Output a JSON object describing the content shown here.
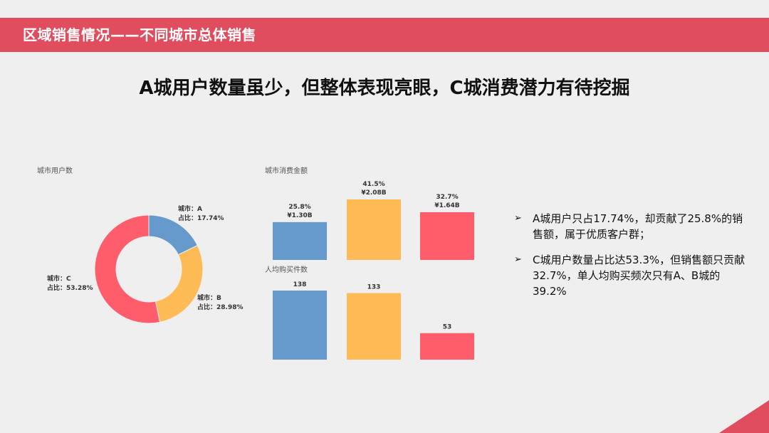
{
  "header": {
    "title": "区域销售情况——不同城市总体销售"
  },
  "headline": "A城用户数量虽少，但整体表现亮眼，C城消费潜力有待挖掘",
  "colors": {
    "A": "#6699cc",
    "B": "#ffbb55",
    "C": "#ff5c6c",
    "banner": "#e04d5e"
  },
  "chart_data": [
    {
      "type": "pie",
      "title": "城市用户数",
      "labels": [
        "A",
        "B",
        "C"
      ],
      "values": [
        17.74,
        28.98,
        53.28
      ],
      "slice_labels": [
        {
          "line1": "城市：A",
          "line2": "占比：17.74%"
        },
        {
          "line1": "城市：B",
          "line2": "占比：28.98%"
        },
        {
          "line1": "城市：C",
          "line2": "占比：53.28%"
        }
      ]
    },
    {
      "type": "bar",
      "title": "城市消费金额",
      "categories": [
        "A",
        "B",
        "C"
      ],
      "values": [
        1.3,
        2.08,
        1.64
      ],
      "data_labels": [
        {
          "line1": "25.8%",
          "line2": "¥1.30B"
        },
        {
          "line1": "41.5%",
          "line2": "¥2.08B"
        },
        {
          "line1": "32.7%",
          "line2": "¥1.64B"
        }
      ]
    },
    {
      "type": "bar",
      "title": "人均购买件数",
      "categories": [
        "A",
        "B",
        "C"
      ],
      "values": [
        138,
        133,
        53
      ],
      "data_labels": [
        "138",
        "133",
        "53"
      ]
    }
  ],
  "bullets": [
    {
      "mark": "➢",
      "text": "A城用户只占17.74%，却贡献了25.8%的销售额，属于优质客户群；"
    },
    {
      "mark": "➢",
      "text": "C城用户数量占比达53.3%，但销售额只贡献32.7%，单人均购买频次只有A、B城的39.2%"
    }
  ]
}
